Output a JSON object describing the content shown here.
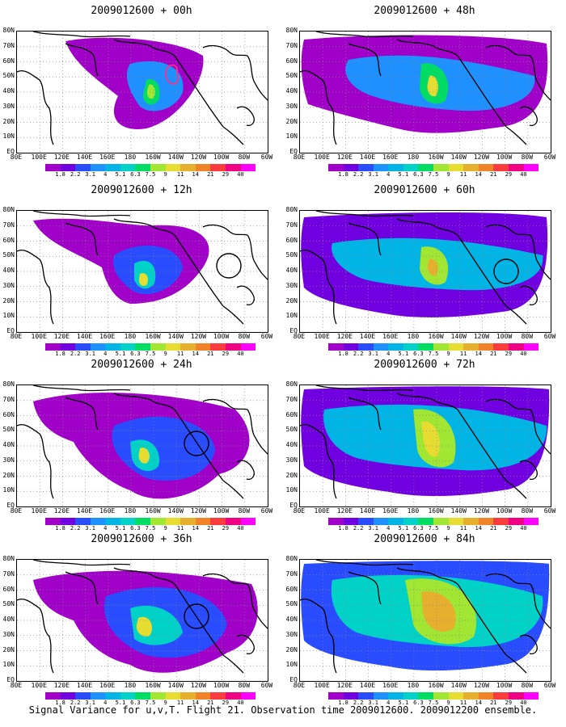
{
  "figure": {
    "caption": "Signal Variance for u,v,T. Flight 21. Observation time 2009012600. 2009012200 ensemble.",
    "lat_labels": [
      "80N",
      "70N",
      "60N",
      "50N",
      "40N",
      "30N",
      "20N",
      "10N",
      "EQ"
    ],
    "lon_labels": [
      "80E",
      "100E",
      "120E",
      "140E",
      "160E",
      "180",
      "160W",
      "140W",
      "120W",
      "100W",
      "80W",
      "60W"
    ],
    "colorbar": {
      "ticks": [
        "1.8",
        "2.2",
        "3.1",
        "4",
        "5.1",
        "6.3",
        "7.5",
        "9",
        "11",
        "14",
        "21",
        "29",
        "40"
      ],
      "colors": [
        "#a000c8",
        "#7000e0",
        "#2a4cff",
        "#1e90ff",
        "#00b4e6",
        "#00d2c8",
        "#00dc64",
        "#a0e632",
        "#e6dc32",
        "#e6af2d",
        "#f08228",
        "#fa3c3c",
        "#f00082",
        "#ff00ff"
      ]
    },
    "panels": [
      {
        "title": "2009012600 + 00h"
      },
      {
        "title": "2009012600 + 48h"
      },
      {
        "title": "2009012600 + 12h"
      },
      {
        "title": "2009012600 + 60h"
      },
      {
        "title": "2009012600 + 24h"
      },
      {
        "title": "2009012600 + 72h"
      },
      {
        "title": "2009012600 + 36h"
      },
      {
        "title": "2009012600 + 84h"
      }
    ]
  }
}
